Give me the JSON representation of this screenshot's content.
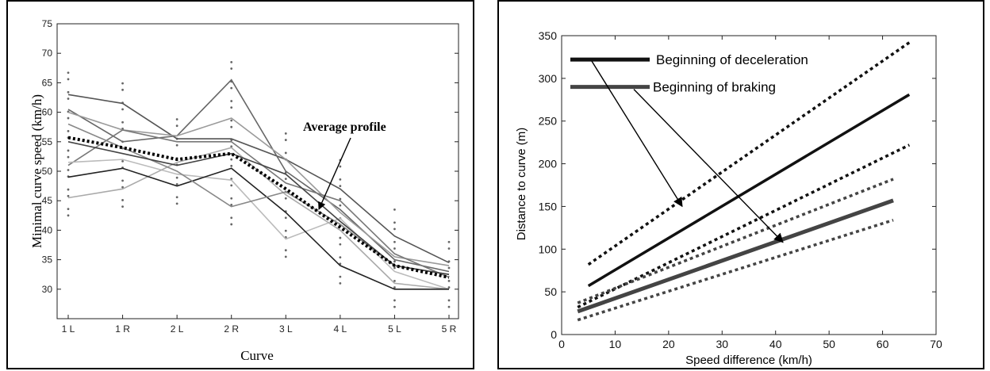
{
  "chart_data": [
    {
      "type": "line",
      "xlabel": "Curve",
      "ylabel": "Minimal curve speed (km/h)",
      "categories": [
        "1 L",
        "1 R",
        "2 L",
        "2 R",
        "3 L",
        "4 L",
        "5 L",
        "5 R"
      ],
      "ylim": [
        25,
        75
      ],
      "yticks": [
        30,
        35,
        40,
        45,
        50,
        55,
        60,
        65,
        70,
        75
      ],
      "grid": false,
      "annotation": "Average profile",
      "series": [
        {
          "values": [
            63,
            61.5,
            55.5,
            55.5,
            52,
            47,
            39,
            34.5
          ],
          "color": "#555555"
        },
        {
          "values": [
            60.5,
            55,
            56,
            65.5,
            50,
            43.5,
            35,
            33
          ],
          "color": "#666666"
        },
        {
          "values": [
            60,
            57,
            56,
            59,
            52,
            43,
            35.5,
            34
          ],
          "color": "#9a9a9a"
        },
        {
          "values": [
            51,
            57,
            55,
            55,
            48,
            45,
            36,
            32
          ],
          "color": "#777777"
        },
        {
          "values": [
            51.5,
            52,
            49.5,
            48.5,
            38.5,
            42,
            33,
            30
          ],
          "color": "#bbbbbb"
        },
        {
          "values": [
            45.5,
            47,
            51.5,
            54,
            46,
            40,
            31,
            30
          ],
          "color": "#aaaaaa"
        },
        {
          "values": [
            49,
            50.5,
            47.5,
            50.5,
            43,
            34,
            30,
            30
          ],
          "color": "#222222"
        },
        {
          "values": [
            58,
            54,
            50,
            44,
            46.5,
            41,
            34,
            32.5
          ],
          "color": "#888888"
        },
        {
          "values": [
            55,
            53,
            51,
            53,
            49.5,
            41.5,
            34,
            32.5
          ],
          "color": "#444444"
        },
        {
          "values": [
            55.7,
            54,
            52,
            53,
            47,
            40.5,
            34,
            32
          ],
          "color": "#000000",
          "style": "dotted",
          "is_average": true
        }
      ]
    },
    {
      "type": "line",
      "xlabel": "Speed difference (km/h)",
      "ylabel": "Distance to curve (m)",
      "xlim": [
        0,
        70
      ],
      "ylim": [
        0,
        350
      ],
      "xticks": [
        0,
        10,
        20,
        30,
        40,
        50,
        60,
        70
      ],
      "yticks": [
        0,
        50,
        100,
        150,
        200,
        250,
        300,
        350
      ],
      "grid": false,
      "legend_placement": "top-left",
      "legend": [
        {
          "label": "Beginning of deceleration",
          "color": "#111111"
        },
        {
          "label": "Beginning of braking",
          "color": "#444444"
        }
      ],
      "series": [
        {
          "name": "Beginning of deceleration",
          "x": [
            5,
            65
          ],
          "y": [
            57,
            281
          ],
          "color": "#111111",
          "style": "solid"
        },
        {
          "x": [
            5,
            65
          ],
          "y": [
            82,
            342
          ],
          "color": "#111111",
          "style": "dotted"
        },
        {
          "x": [
            3,
            65
          ],
          "y": [
            32,
            222
          ],
          "color": "#111111",
          "style": "dotted"
        },
        {
          "name": "Beginning of braking",
          "x": [
            3,
            62
          ],
          "y": [
            27,
            157
          ],
          "color": "#444444",
          "style": "solid"
        },
        {
          "x": [
            3,
            62
          ],
          "y": [
            37,
            182
          ],
          "color": "#444444",
          "style": "dotted"
        },
        {
          "x": [
            3,
            62
          ],
          "y": [
            17,
            134
          ],
          "color": "#444444",
          "style": "dotted"
        }
      ]
    }
  ]
}
